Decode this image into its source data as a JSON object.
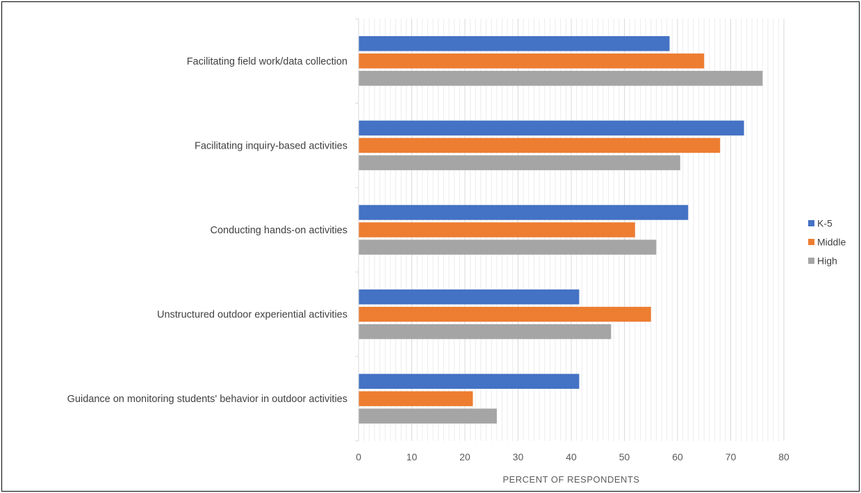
{
  "chart_data": {
    "type": "bar",
    "orientation": "horizontal",
    "categories": [
      "Facilitating field work/data collection",
      "Facilitating inquiry-based activities",
      "Conducting hands-on activities",
      "Unstructured outdoor experiential activities",
      "Guidance on monitoring students' behavior in outdoor activities"
    ],
    "series": [
      {
        "name": "K-5",
        "color": "#4472C4",
        "values": [
          58.5,
          72.5,
          62,
          41.5,
          41.5
        ]
      },
      {
        "name": "Middle",
        "color": "#ED7D31",
        "values": [
          65,
          68,
          52,
          55,
          21.5
        ]
      },
      {
        "name": "High",
        "color": "#A5A5A5",
        "values": [
          76,
          60.5,
          56,
          47.5,
          26
        ]
      }
    ],
    "xlabel": "PERCENT OF RESPONDENTS",
    "xlim": [
      0,
      80
    ],
    "xticks": [
      "0",
      "10",
      "20",
      "30",
      "40",
      "50",
      "60",
      "70",
      "80"
    ],
    "grid": true,
    "legend_position": "right"
  }
}
